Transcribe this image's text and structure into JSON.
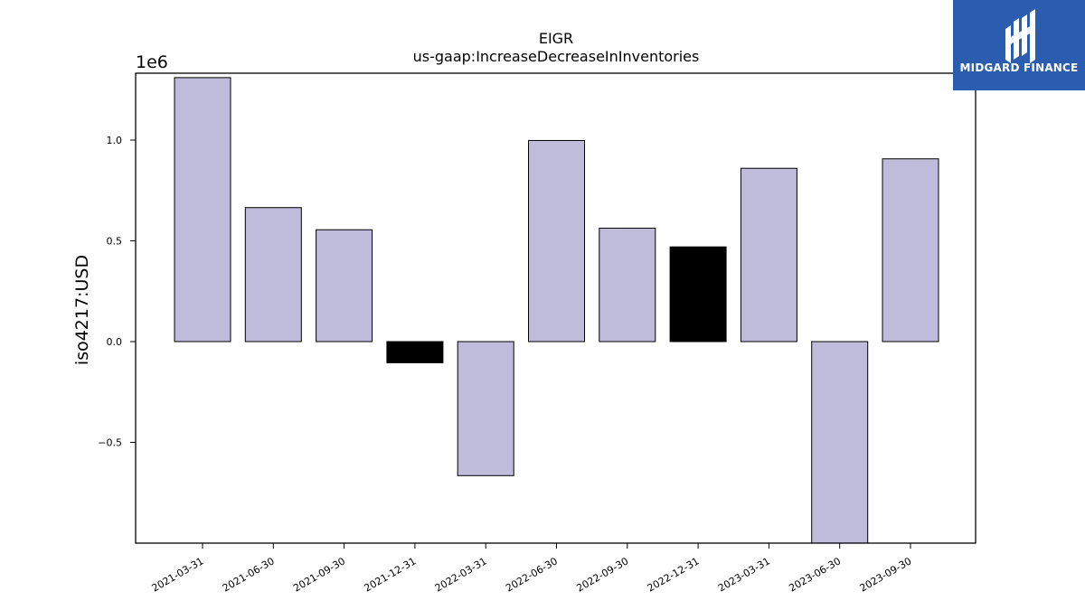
{
  "chart_data": {
    "type": "bar",
    "title": "EIGR",
    "subtitle": "us-gaap:IncreaseDecreaseInInventories",
    "ylabel": "iso4217:USD",
    "xlabel": "",
    "offset_label": "1e6",
    "ylim": [
      -1.0,
      1.33
    ],
    "yticks": [
      -0.5,
      0.0,
      0.5,
      1.0
    ],
    "ytick_labels": [
      "−0.5",
      "0.0",
      "0.5",
      "1.0"
    ],
    "categories": [
      "2021-03-31",
      "2021-06-30",
      "2021-09-30",
      "2021-12-31",
      "2022-03-31",
      "2022-06-30",
      "2022-09-30",
      "2022-12-31",
      "2023-03-31",
      "2023-06-30",
      "2023-09-30"
    ],
    "values": [
      1.31,
      0.665,
      0.555,
      -0.105,
      -0.665,
      0.998,
      0.563,
      0.47,
      0.86,
      -1.0,
      0.907
    ],
    "value_unit_multiplier": 1000000,
    "bar_colors": [
      "#bebbdb",
      "#bebbdb",
      "#bebbdb",
      "#000000",
      "#bebbdb",
      "#bebbdb",
      "#bebbdb",
      "#000000",
      "#bebbdb",
      "#bebbdb",
      "#bebbdb"
    ],
    "grid": false,
    "legend": "none"
  },
  "logo": {
    "text": "MIDGARD FINANCE",
    "bg_color": "#2a5db0"
  }
}
